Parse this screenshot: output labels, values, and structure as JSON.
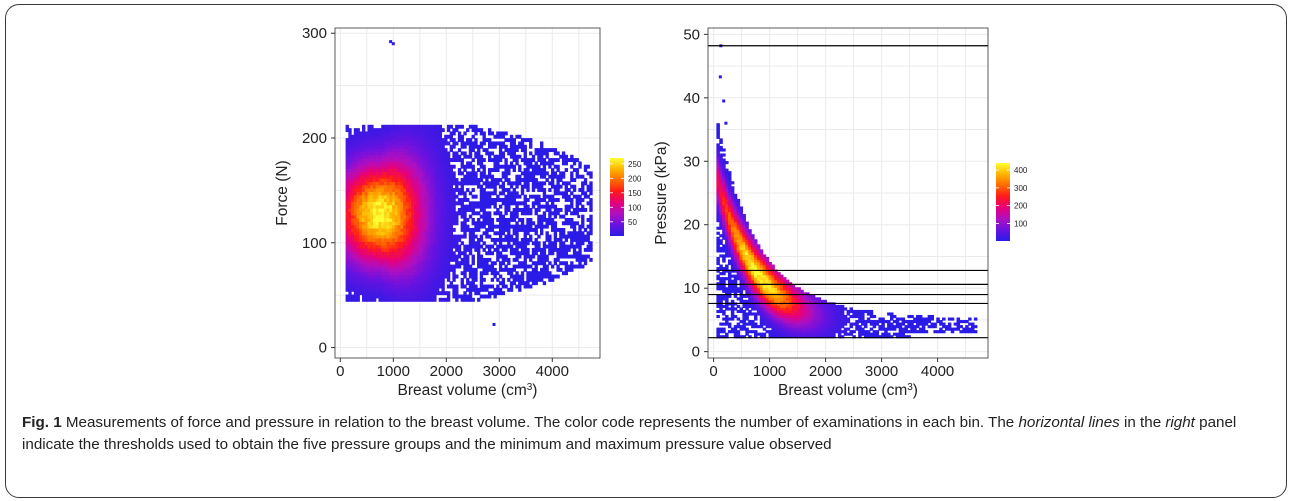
{
  "figure": {
    "label": "Fig. 1",
    "caption_parts": [
      {
        "text": " Measurements of force and pressure in relation to the breast volume. The color code represents the number of examinations in each bin. The ",
        "italic": false
      },
      {
        "text": "horizontal lines",
        "italic": true
      },
      {
        "text": " in the ",
        "italic": false
      },
      {
        "text": "right",
        "italic": true
      },
      {
        "text": " panel indicate the thresholds used to obtain the five pressure groups and the minimum and maximum pressure value observed",
        "italic": false
      }
    ]
  },
  "colors": {
    "scale": [
      "#2b1be6",
      "#6a12e0",
      "#b00fc0",
      "#e6007a",
      "#ff1a1a",
      "#ff6a00",
      "#ffb300",
      "#ffff33"
    ],
    "grid": "#ebebeb",
    "panel_border": "#333333",
    "hline": "#000000"
  },
  "chart_data": [
    {
      "type": "heatmap",
      "xlabel": "Breast volume (cm",
      "xlabel_sup": "3",
      "xlabel_close": ")",
      "ylabel": "Force (N)",
      "xlim": [
        -100,
        4900
      ],
      "ylim": [
        -10,
        305
      ],
      "xticks": [
        0,
        1000,
        2000,
        3000,
        4000
      ],
      "yticks": [
        0,
        100,
        200,
        300
      ],
      "grid": true,
      "legend": {
        "position": "right",
        "range": [
          1,
          270
        ],
        "labels": [
          {
            "value": 250,
            "text": "250"
          },
          {
            "value": 200,
            "text": "200"
          },
          {
            "value": 150,
            "text": "150"
          },
          {
            "value": 100,
            "text": "100"
          },
          {
            "value": 50,
            "text": "50"
          }
        ]
      },
      "density": {
        "center": [
          750,
          128
        ],
        "spread_x": 550,
        "spread_y": 32,
        "peak": 250,
        "x_range": [
          100,
          4750
        ],
        "y_range": [
          22,
          292
        ],
        "outliers": [
          [
            950,
            292
          ],
          [
            1000,
            290
          ],
          [
            4500,
            125
          ],
          [
            4700,
            100
          ],
          [
            2900,
            22
          ]
        ]
      },
      "hlines": []
    },
    {
      "type": "heatmap",
      "xlabel": "Breast volume (cm",
      "xlabel_sup": "3",
      "xlabel_close": ")",
      "ylabel": "Pressure (kPa)",
      "xlim": [
        -100,
        4900
      ],
      "ylim": [
        -1,
        51
      ],
      "xticks": [
        0,
        1000,
        2000,
        3000,
        4000
      ],
      "yticks": [
        0,
        10,
        20,
        30,
        40,
        50
      ],
      "grid": true,
      "legend": {
        "position": "right",
        "range": [
          1,
          440
        ],
        "labels": [
          {
            "value": 400,
            "text": "400"
          },
          {
            "value": 300,
            "text": "300"
          },
          {
            "value": 200,
            "text": "200"
          },
          {
            "value": 100,
            "text": "100"
          }
        ]
      },
      "density": {
        "center": [
          800,
          10.5
        ],
        "spread_x": 600,
        "spread_y": 2.5,
        "peak": 420,
        "x_range": [
          50,
          4700
        ],
        "y_range": [
          2.2,
          36
        ],
        "outliers": [
          [
            130,
            48.2
          ],
          [
            120,
            43.3
          ],
          [
            180,
            39.5
          ],
          [
            220,
            36
          ]
        ]
      },
      "hlines": [
        2.2,
        7.6,
        9.0,
        10.6,
        12.8,
        48.2
      ]
    }
  ]
}
